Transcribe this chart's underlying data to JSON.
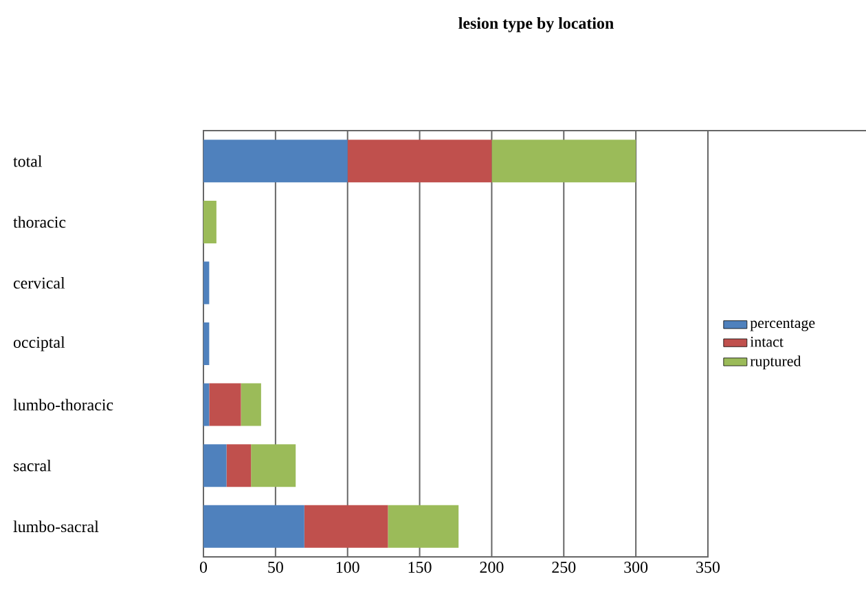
{
  "chart_data": {
    "type": "bar",
    "orientation": "horizontal",
    "stacked": true,
    "title": "lesion type by location",
    "categories": [
      "total",
      "thoracic",
      "cervical",
      "occiptal",
      "lumbo-thoracic",
      "sacral",
      "lumbo-sacral"
    ],
    "series": [
      {
        "name": "percentage",
        "color": "#4f81bd",
        "values": [
          100,
          0,
          4,
          4,
          4,
          16,
          70
        ]
      },
      {
        "name": "intact",
        "color": "#c0504d",
        "values": [
          100,
          0,
          0,
          0,
          22,
          17,
          58
        ]
      },
      {
        "name": "ruptured",
        "color": "#9bbb59",
        "values": [
          100,
          9,
          0,
          0,
          14,
          31,
          49
        ]
      }
    ],
    "xlim": [
      0,
      350
    ],
    "xticks": [
      0,
      50,
      100,
      150,
      200,
      250,
      300,
      350
    ],
    "grid": "x",
    "legend": "right"
  }
}
